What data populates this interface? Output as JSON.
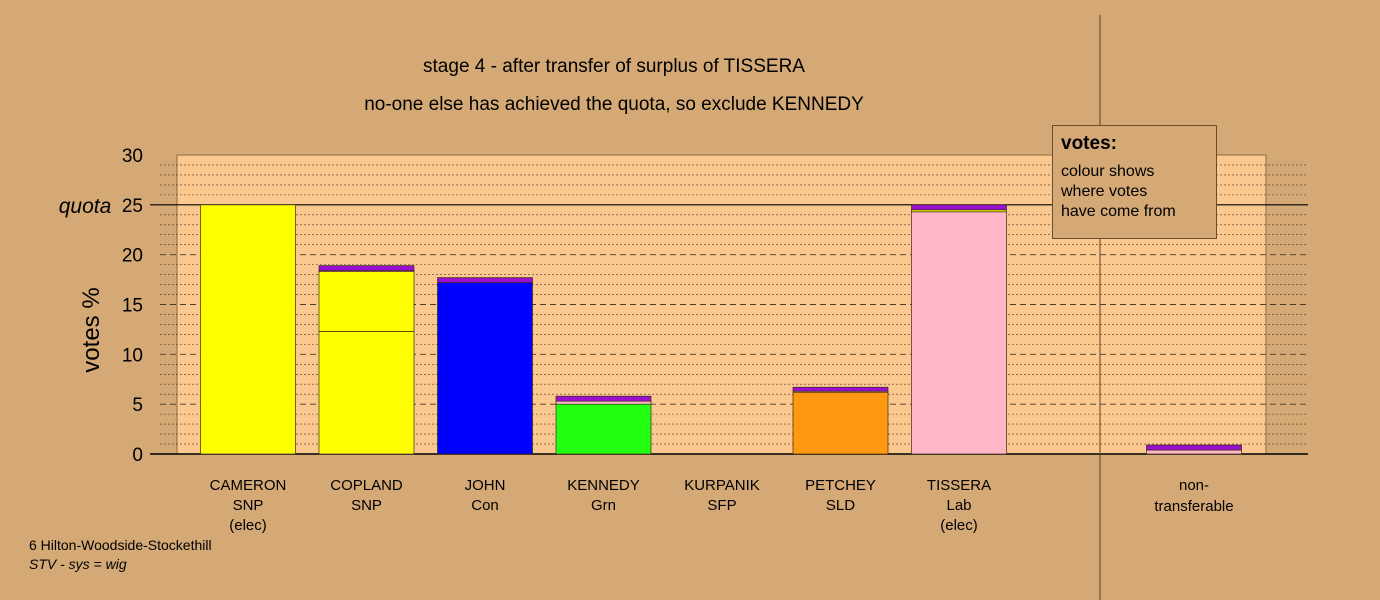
{
  "chart_data": {
    "type": "bar",
    "title": "stage 4 - after transfer of surplus of TISSERA",
    "subtitle": "no-one else has achieved the quota, so exclude KENNEDY",
    "ylabel": "votes %",
    "ylim": [
      0,
      30
    ],
    "yticks": [
      "0",
      "5",
      "10",
      "15",
      "20",
      "25",
      "30"
    ],
    "quota_label": "quota",
    "quota": 25,
    "candidates": [
      {
        "lines": [
          "CAMERON",
          "SNP",
          "(elec)"
        ],
        "segments": [
          {
            "value": 25.0,
            "color": "#FFFF00"
          }
        ]
      },
      {
        "lines": [
          "COPLAND",
          "SNP",
          ""
        ],
        "segments": [
          {
            "value": 12.3,
            "color": "#FFFF00"
          },
          {
            "value": 6.0,
            "color": "#FFFF00"
          },
          {
            "value": 0.1,
            "color": "#FFB6C6"
          },
          {
            "value": 0.5,
            "color": "#9A0ECF"
          }
        ]
      },
      {
        "lines": [
          "JOHN",
          "Con",
          ""
        ],
        "segments": [
          {
            "value": 17.2,
            "color": "#0000FF"
          },
          {
            "value": 0.5,
            "color": "#9A0ECF"
          }
        ]
      },
      {
        "lines": [
          "KENNEDY",
          "Grn",
          ""
        ],
        "segments": [
          {
            "value": 5.0,
            "color": "#22FF11"
          },
          {
            "value": 0.3,
            "color": "#FFB6C6"
          },
          {
            "value": 0.5,
            "color": "#9A0ECF"
          }
        ]
      },
      {
        "lines": [
          "KURPANIK",
          "SFP",
          ""
        ],
        "segments": []
      },
      {
        "lines": [
          "PETCHEY",
          "SLD",
          ""
        ],
        "segments": [
          {
            "value": 6.2,
            "color": "#FF9911"
          },
          {
            "value": 0.1,
            "color": "#FFB6C6"
          },
          {
            "value": 0.4,
            "color": "#9A0ECF"
          }
        ]
      },
      {
        "lines": [
          "TISSERA",
          "Lab",
          "(elec)"
        ],
        "segments": [
          {
            "value": 24.3,
            "color": "#FFB6C6"
          },
          {
            "value": 0.2,
            "color": "#FFFF00"
          },
          {
            "value": 0.5,
            "color": "#9A0ECF"
          }
        ]
      }
    ],
    "nontransferable": {
      "lines": [
        "non-",
        "transferable"
      ],
      "segments": [
        {
          "value": 0.4,
          "color": "#FFB6C6"
        },
        {
          "value": 0.5,
          "color": "#9A0ECF"
        }
      ]
    },
    "grid": true
  },
  "legend": {
    "title": "votes:",
    "lines": [
      "colour shows",
      "where votes",
      "have come from"
    ]
  },
  "footer": {
    "line1": "6 Hilton-Woodside-Stockethill",
    "line2": "STV - sys = wig"
  }
}
